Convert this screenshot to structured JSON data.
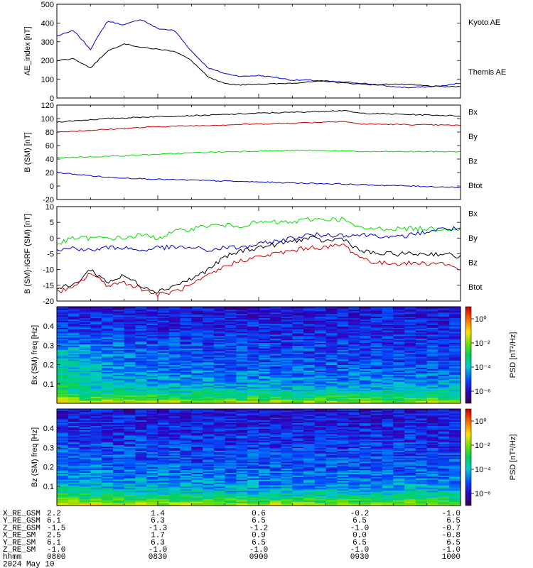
{
  "figure": {
    "date_label": "2024 May 10"
  },
  "colors": {
    "black": "#000000",
    "red": "#cc0000",
    "green": "#00dd00",
    "blue": "#0000cc"
  },
  "chart_data": [
    {
      "type": "line",
      "ylabel": "AE_index [nT]",
      "ylim": [
        0,
        500
      ],
      "yticks": [
        "0",
        "100",
        "200",
        "300",
        "400",
        "500"
      ],
      "xlim": [
        "0800",
        "1000"
      ],
      "series": [
        {
          "name": "Kyoto AE",
          "color": "#0000cc",
          "x": [
            "0800",
            "0805",
            "0810",
            "0815",
            "0820",
            "0825",
            "0830",
            "0835",
            "0840",
            "0845",
            "0850",
            "0855",
            "0900",
            "0905",
            "0910",
            "0915",
            "0920",
            "0925",
            "0930",
            "0935",
            "0940",
            "0945",
            "0950",
            "0955",
            "1000"
          ],
          "values": [
            330,
            360,
            260,
            410,
            390,
            420,
            370,
            360,
            250,
            160,
            130,
            115,
            120,
            110,
            95,
            95,
            90,
            85,
            80,
            70,
            60,
            55,
            60,
            65,
            80
          ]
        },
        {
          "name": "Themis AE",
          "color": "#000000",
          "x": [
            "0800",
            "0805",
            "0810",
            "0815",
            "0820",
            "0825",
            "0830",
            "0835",
            "0840",
            "0845",
            "0850",
            "0855",
            "0900",
            "0905",
            "0910",
            "0915",
            "0920",
            "0925",
            "0930",
            "0935",
            "0940",
            "0945",
            "0950",
            "0955",
            "1000"
          ],
          "values": [
            200,
            210,
            160,
            250,
            290,
            270,
            260,
            250,
            200,
            110,
            75,
            70,
            75,
            75,
            80,
            85,
            90,
            80,
            75,
            70,
            75,
            70,
            65,
            60,
            60
          ]
        }
      ]
    },
    {
      "type": "line",
      "ylabel": "B (SM) [nT]",
      "ylim": [
        -20,
        120
      ],
      "yticks": [
        "-20",
        "0",
        "20",
        "40",
        "60",
        "80",
        "100",
        "120"
      ],
      "xlim": [
        "0800",
        "1000"
      ],
      "series": [
        {
          "name": "Bx",
          "color": "#000000",
          "x": [
            "0800",
            "0815",
            "0830",
            "0845",
            "0900",
            "0915",
            "0925",
            "0930",
            "0945",
            "1000"
          ],
          "values": [
            95,
            100,
            103,
            105,
            108,
            110,
            112,
            108,
            106,
            104
          ]
        },
        {
          "name": "By",
          "color": "#cc0000",
          "x": [
            "0800",
            "0815",
            "0830",
            "0845",
            "0900",
            "0915",
            "0925",
            "0930",
            "0945",
            "1000"
          ],
          "values": [
            80,
            84,
            88,
            90,
            92,
            94,
            96,
            92,
            91,
            90
          ]
        },
        {
          "name": "Bz",
          "color": "#00dd00",
          "x": [
            "0800",
            "0815",
            "0830",
            "0845",
            "0900",
            "0915",
            "0925",
            "0930",
            "0945",
            "1000"
          ],
          "values": [
            42,
            44,
            47,
            50,
            52,
            53,
            52,
            51,
            51,
            51
          ]
        },
        {
          "name": "Btot",
          "color": "#0000cc",
          "x": [
            "0800",
            "0815",
            "0830",
            "0845",
            "0900",
            "0915",
            "0925",
            "0930",
            "0945",
            "1000"
          ],
          "values": [
            20,
            13,
            10,
            8,
            6,
            4,
            3,
            2,
            0,
            -2
          ]
        }
      ]
    },
    {
      "type": "line",
      "ylabel": "B (SM)-IGRF (SM) [nT]",
      "ylim": [
        -20,
        10
      ],
      "yticks": [
        "-20",
        "-15",
        "-10",
        "-5",
        "0",
        "5",
        "10"
      ],
      "xlim": [
        "0800",
        "1000"
      ],
      "series": [
        {
          "name": "Bx",
          "color": "#000000",
          "x": [
            "0800",
            "0805",
            "0810",
            "0815",
            "0820",
            "0825",
            "0830",
            "0835",
            "0840",
            "0845",
            "0850",
            "0855",
            "0900",
            "0905",
            "0910",
            "0915",
            "0920",
            "0925",
            "0930",
            "0935",
            "0940",
            "0945",
            "0950",
            "0955",
            "1000"
          ],
          "values": [
            -16,
            -15,
            -10,
            -14,
            -12,
            -15,
            -17,
            -15,
            -13,
            -10,
            -6,
            -4,
            -3,
            -2,
            -1,
            0,
            -1,
            0,
            -4,
            -5,
            -5,
            -5,
            -5,
            -5,
            -6
          ]
        },
        {
          "name": "By",
          "color": "#cc0000",
          "x": [
            "0800",
            "0805",
            "0810",
            "0815",
            "0820",
            "0825",
            "0830",
            "0835",
            "0840",
            "0845",
            "0850",
            "0855",
            "0900",
            "0905",
            "0910",
            "0915",
            "0920",
            "0925",
            "0930",
            "0935",
            "0940",
            "0945",
            "0950",
            "0955",
            "1000"
          ],
          "values": [
            -17,
            -16,
            -11,
            -15,
            -14,
            -16,
            -18,
            -17,
            -15,
            -12,
            -9,
            -7,
            -6,
            -5,
            -4,
            -3,
            -3,
            -2,
            -6,
            -8,
            -8,
            -8,
            -8,
            -8,
            -10
          ]
        },
        {
          "name": "Bz",
          "color": "#00dd00",
          "x": [
            "0800",
            "0805",
            "0810",
            "0815",
            "0820",
            "0825",
            "0830",
            "0835",
            "0840",
            "0845",
            "0850",
            "0855",
            "0900",
            "0905",
            "0910",
            "0915",
            "0920",
            "0925",
            "0930",
            "0935",
            "0940",
            "0945",
            "0950",
            "0955",
            "1000"
          ],
          "values": [
            -2,
            0,
            0,
            0,
            0,
            1,
            0,
            2,
            3,
            4,
            4,
            4,
            5,
            5,
            5,
            6,
            6,
            6,
            3,
            3,
            3,
            3,
            3,
            3,
            3
          ]
        },
        {
          "name": "Btot",
          "color": "#0000cc",
          "x": [
            "0800",
            "0805",
            "0810",
            "0815",
            "0820",
            "0825",
            "0830",
            "0835",
            "0840",
            "0845",
            "0850",
            "0855",
            "0900",
            "0905",
            "0910",
            "0915",
            "0920",
            "0925",
            "0930",
            "0935",
            "0940",
            "0945",
            "0950",
            "0955",
            "1000"
          ],
          "values": [
            -4,
            -3,
            -4,
            -3,
            -3,
            -4,
            -3,
            -3,
            -3,
            -4,
            -3,
            -3,
            -2,
            -1,
            0,
            1,
            1,
            1,
            1,
            1,
            0,
            1,
            2,
            3,
            3
          ]
        }
      ]
    },
    {
      "type": "heatmap",
      "ylabel": "Bx (SM) freq [Hz]",
      "yticks": [
        "0.1",
        "0.2",
        "0.3",
        "0.4"
      ],
      "ylim": [
        0,
        0.5
      ],
      "xlim": [
        "0800",
        "1000"
      ],
      "zlabel": "PSD [nT²/Hz]",
      "colorbar_ticks": [
        "10⁰",
        "10⁻²",
        "10⁻⁴",
        "10⁻⁶"
      ],
      "colorbar_values": [
        0,
        -2,
        -4,
        -6
      ],
      "zlim": [
        -7,
        1
      ]
    },
    {
      "type": "heatmap",
      "ylabel": "Bz (SM) freq [Hz]",
      "yticks": [
        "0.1",
        "0.2",
        "0.3",
        "0.4"
      ],
      "ylim": [
        0,
        0.5
      ],
      "xlim": [
        "0800",
        "1000"
      ],
      "zlabel": "PSD [nT²/Hz]",
      "colorbar_ticks": [
        "10⁰",
        "10⁻²",
        "10⁻⁴",
        "10⁻⁶"
      ],
      "colorbar_values": [
        0,
        -2,
        -4,
        -6
      ],
      "zlim": [
        -7,
        1
      ]
    }
  ],
  "orbit_table": {
    "rows": [
      {
        "label": "X_RE_GSM",
        "values": [
          "2.2",
          "1.4",
          "0.6",
          "-0.2",
          "-1.0"
        ]
      },
      {
        "label": "Y_RE_GSM",
        "values": [
          "6.1",
          "6.3",
          "6.5",
          "6.5",
          "6.5"
        ]
      },
      {
        "label": "Z_RE_GSM",
        "values": [
          "-1.5",
          "-1.3",
          "-1.2",
          "-1.0",
          "-0.7"
        ]
      },
      {
        "label": "X_RE_SM",
        "values": [
          "2.5",
          "1.7",
          "0.9",
          "0.0",
          "-0.8"
        ]
      },
      {
        "label": "Y_RE_SM",
        "values": [
          "6.1",
          "6.3",
          "6.5",
          "6.5",
          "6.5"
        ]
      },
      {
        "label": "Z_RE_SM",
        "values": [
          "-1.0",
          "-1.0",
          "-1.0",
          "-1.0",
          "-1.0"
        ]
      },
      {
        "label": "hhmm",
        "values": [
          "0800",
          "0830",
          "0900",
          "0930",
          "1000"
        ]
      }
    ]
  }
}
